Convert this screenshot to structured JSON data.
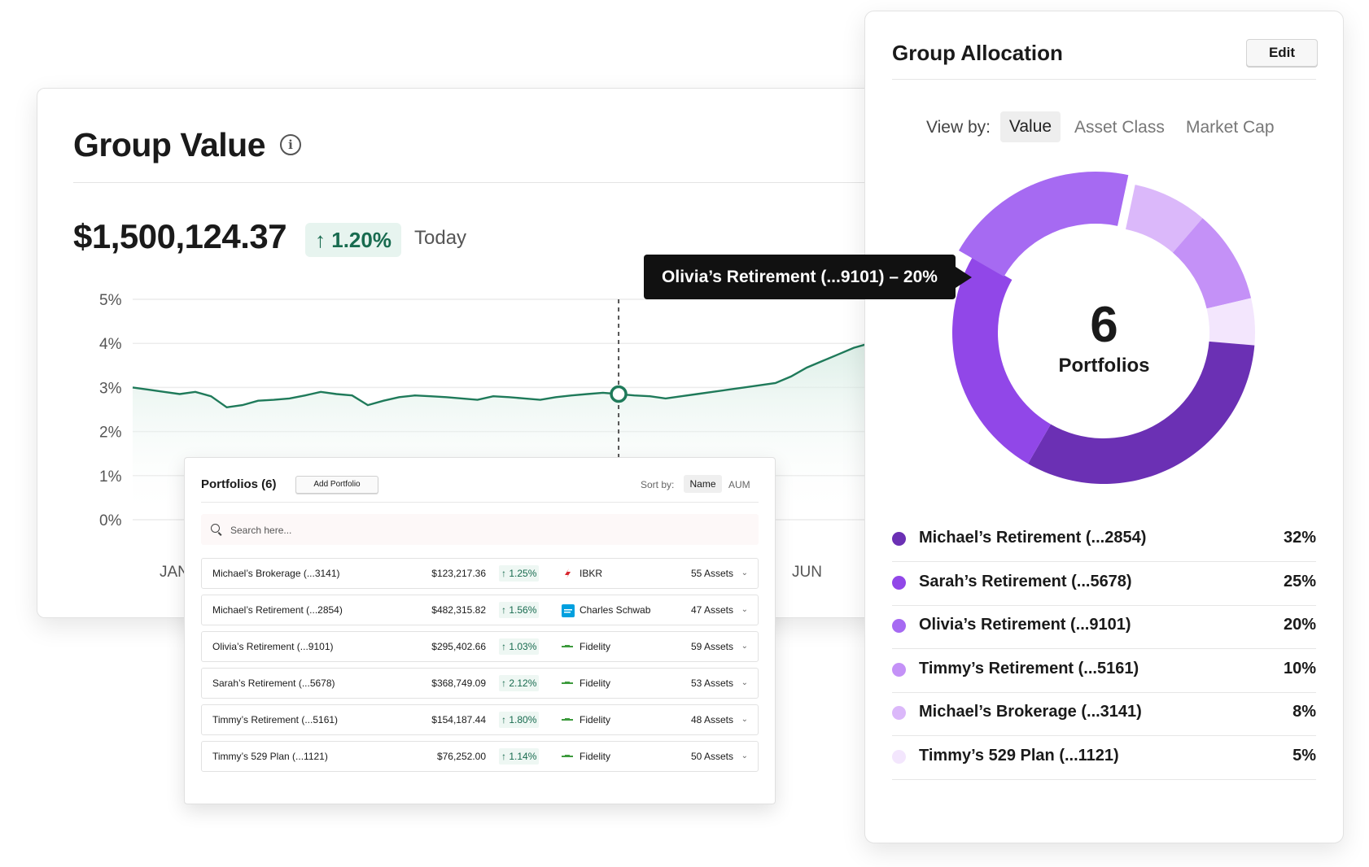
{
  "group_value": {
    "title": "Group Value",
    "info_icon": "info-icon",
    "value": "$1,500,124.37",
    "change": "1.20%",
    "change_arrow": "↑",
    "period": "Today",
    "chart_data": {
      "type": "area",
      "y_ticks": [
        "5%",
        "4%",
        "3%",
        "2%",
        "1%",
        "0%"
      ],
      "ylim": [
        0,
        5
      ],
      "x_tick_labels": [
        "JAN",
        "JUN"
      ],
      "series": [
        {
          "values": [
            3.0,
            2.95,
            2.9,
            2.85,
            2.9,
            2.8,
            2.55,
            2.6,
            2.7,
            2.72,
            2.75,
            2.82,
            2.9,
            2.85,
            2.82,
            2.6,
            2.7,
            2.78,
            2.82,
            2.8,
            2.78,
            2.75,
            2.72,
            2.8,
            2.78,
            2.75,
            2.72,
            2.78,
            2.82,
            2.85,
            2.88,
            2.85,
            2.82,
            2.8,
            2.75,
            2.8,
            2.85,
            2.9,
            2.95,
            3.0,
            3.05,
            3.1,
            3.25,
            3.45,
            3.6,
            3.75,
            3.9,
            4.0,
            4.15,
            4.25,
            4.2
          ]
        }
      ],
      "highlight_index": 31
    },
    "tooltip": "Olivia’s Retirement (...9101) – 20%"
  },
  "portfolios": {
    "title": "Portfolios (6)",
    "add_label": "Add Portfolio",
    "sort_label": "Sort by:",
    "sort_options": [
      "Name",
      "AUM"
    ],
    "search_placeholder": "Search here...",
    "rows": [
      {
        "name": "Michael’s Brokerage (...3141)",
        "value": "$123,217.36",
        "change": "↑ 1.25%",
        "broker": "IBKR",
        "assets": "55 Assets"
      },
      {
        "name": "Michael’s Retirement (...2854)",
        "value": "$482,315.82",
        "change": "↑ 1.56%",
        "broker": "Charles Schwab",
        "assets": "47 Assets"
      },
      {
        "name": "Olivia’s Retirement (...9101)",
        "value": "$295,402.66",
        "change": "↑ 1.03%",
        "broker": "Fidelity",
        "assets": "59 Assets"
      },
      {
        "name": "Sarah’s Retirement (...5678)",
        "value": "$368,749.09",
        "change": "↑ 2.12%",
        "broker": "Fidelity",
        "assets": "53 Assets"
      },
      {
        "name": "Timmy’s Retirement (...5161)",
        "value": "$154,187.44",
        "change": "↑ 1.80%",
        "broker": "Fidelity",
        "assets": "48 Assets"
      },
      {
        "name": "Timmy’s 529 Plan (...1121)",
        "value": "$76,252.00",
        "change": "↑ 1.14%",
        "broker": "Fidelity",
        "assets": "50 Assets"
      }
    ]
  },
  "allocation": {
    "title": "Group Allocation",
    "edit_label": "Edit",
    "view_by_label": "View by:",
    "tabs": [
      "Value",
      "Asset Class",
      "Market Cap"
    ],
    "count": "6",
    "count_label": "Portfolios",
    "chart_data": {
      "type": "pie",
      "labels": [
        "Michael’s Retirement (...2854)",
        "Sarah’s Retirement (...5678)",
        "Olivia’s Retirement (...9101)",
        "Timmy’s Retirement (...5161)",
        "Michael’s Brokerage (...3141)",
        "Timmy’s 529 Plan (...1121)"
      ],
      "values": [
        32,
        25,
        20,
        10,
        8,
        5
      ],
      "colors": [
        "#6b30b4",
        "#9147e8",
        "#a66af2",
        "#c491f7",
        "#dbb8fa",
        "#f3e6fd"
      ],
      "highlighted": "Olivia’s Retirement (...9101)"
    },
    "items": [
      {
        "name": "Michael’s Retirement (...2854)",
        "pct": "32%",
        "color": "#6b30b4"
      },
      {
        "name": "Sarah’s Retirement (...5678)",
        "pct": "25%",
        "color": "#9147e8"
      },
      {
        "name": "Olivia’s Retirement (...9101)",
        "pct": "20%",
        "color": "#a66af2"
      },
      {
        "name": "Timmy’s Retirement (...5161)",
        "pct": "10%",
        "color": "#c491f7"
      },
      {
        "name": "Michael’s Brokerage (...3141)",
        "pct": "8%",
        "color": "#dbb8fa"
      },
      {
        "name": "Timmy’s 529 Plan (...1121)",
        "pct": "5%",
        "color": "#f3e6fd"
      }
    ]
  }
}
